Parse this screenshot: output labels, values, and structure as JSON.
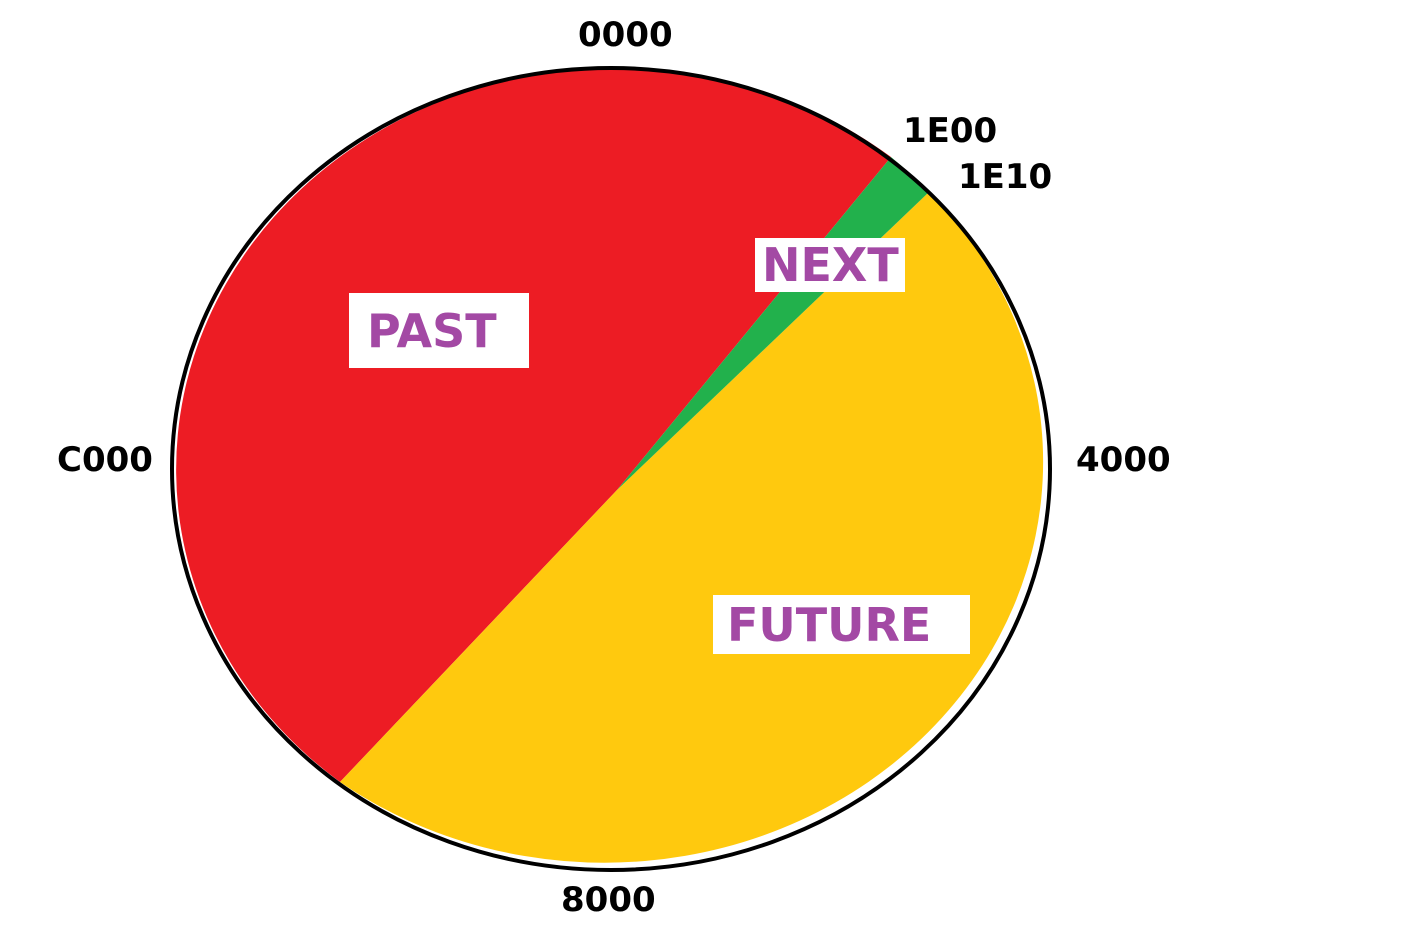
{
  "colors": {
    "past": "#ed1c24",
    "next": "#22b14c",
    "future": "#ffc90e",
    "label_text": "#a349a4",
    "outline": "#000000"
  },
  "ticks": {
    "top": "0000",
    "next_start": "1E00",
    "next_end": "1E10",
    "right": "4000",
    "bottom": "8000",
    "left": "C000"
  },
  "zones": {
    "past": "PAST",
    "next": "NEXT",
    "future": "FUTURE"
  }
}
